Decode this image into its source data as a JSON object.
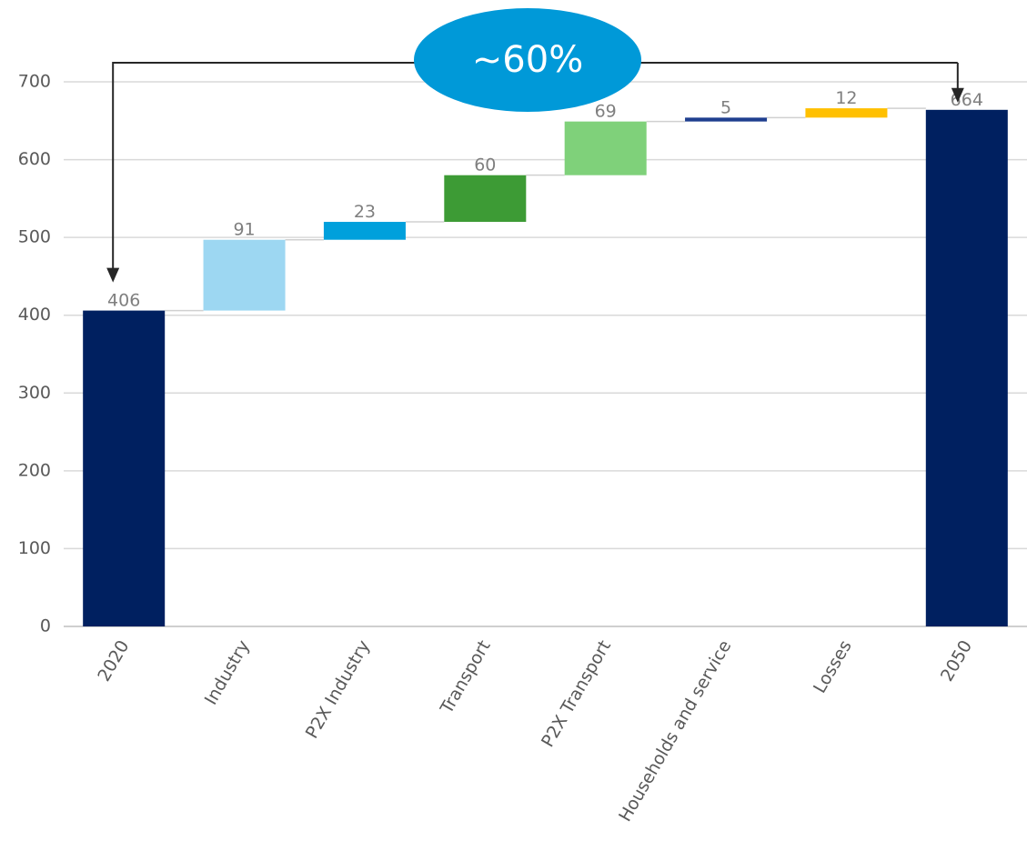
{
  "chart_data": {
    "type": "bar",
    "subtype": "waterfall",
    "title": "",
    "xlabel": "",
    "ylabel": "",
    "ylim": [
      0,
      700
    ],
    "yticks": [
      0,
      100,
      200,
      300,
      400,
      500,
      600,
      700
    ],
    "grid": true,
    "legend": "none",
    "categories": [
      "2020",
      "Industry",
      "P2X Industry",
      "Transport",
      "P2X Transport",
      "Households and service",
      "Losses",
      "2050"
    ],
    "values": [
      406,
      91,
      23,
      60,
      69,
      5,
      12,
      664
    ],
    "bar_kind": [
      "total",
      "increment",
      "increment",
      "increment",
      "increment",
      "increment",
      "increment",
      "total"
    ],
    "colors": [
      "#002060",
      "#9dd7f2",
      "#00a0dc",
      "#3d9b35",
      "#7fd17a",
      "#1f3f8f",
      "#ffc000",
      "#002060"
    ],
    "annotation": {
      "text": "~60%",
      "color": "#0099d8",
      "from_category": "2020",
      "to_category": "2050"
    }
  }
}
